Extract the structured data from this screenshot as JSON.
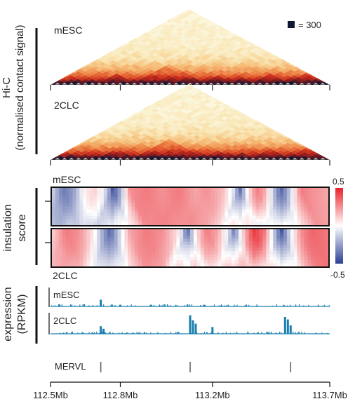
{
  "legend": {
    "swatch_color": "#141733",
    "label": "= 300"
  },
  "labels": {
    "hic_line1": "Hi-C",
    "hic_line2": "(normalised contact signal)",
    "ins_line1": "insulation",
    "ins_line2": "score",
    "expr_line1": "expression",
    "expr_line2": "(RPKM)"
  },
  "chart_data": [
    {
      "type": "heatmap",
      "title": "mESC",
      "description_of_values": "triangular Hi-C contact map, normalised contact signal",
      "colorscale": [
        "#fbf6dc",
        "#f9e4b0",
        "#f6bd78",
        "#ee8a4b",
        "#e0542a",
        "#c0261b",
        "#6e1a22",
        "#141733"
      ],
      "domains": [
        [
          0,
          0.045
        ],
        [
          0.045,
          0.115
        ],
        [
          0.115,
          0.175
        ],
        [
          0.175,
          0.29
        ],
        [
          0.29,
          0.54
        ],
        [
          0.54,
          0.64
        ],
        [
          0.64,
          0.72
        ],
        [
          0.72,
          0.84
        ],
        [
          0.84,
          1.0
        ]
      ],
      "scale_max": 300
    },
    {
      "type": "heatmap",
      "title": "2CLC",
      "description_of_values": "triangular Hi-C contact map, normalised contact signal",
      "colorscale": [
        "#fbf6dc",
        "#f9e4b0",
        "#f6bd78",
        "#ee8a4b",
        "#e0542a",
        "#c0261b",
        "#6e1a22",
        "#141733"
      ],
      "domains": [
        [
          0,
          0.045
        ],
        [
          0.045,
          0.115
        ],
        [
          0.115,
          0.175
        ],
        [
          0.175,
          0.29
        ],
        [
          0.29,
          0.54
        ],
        [
          0.54,
          0.64
        ],
        [
          0.64,
          0.72
        ],
        [
          0.72,
          0.84
        ],
        [
          0.84,
          1.0
        ]
      ],
      "scale_max": 300
    },
    {
      "type": "heatmap",
      "title": "insulation score",
      "rows": [
        "mESC",
        "2CLC"
      ],
      "colorbar": {
        "min": -0.5,
        "max": 0.5,
        "tick_labels": [
          "0.5",
          "-0.5"
        ],
        "colors": [
          "#2b3f93",
          "#ffffff",
          "#e8222a"
        ]
      },
      "mESC_profile": [
        [
          0.0,
          -0.1
        ],
        [
          0.04,
          -0.35
        ],
        [
          0.08,
          -0.25
        ],
        [
          0.12,
          0.05
        ],
        [
          0.16,
          0.1
        ],
        [
          0.2,
          -0.15
        ],
        [
          0.22,
          -0.45
        ],
        [
          0.25,
          -0.2
        ],
        [
          0.28,
          0.25
        ],
        [
          0.34,
          0.3
        ],
        [
          0.4,
          0.25
        ],
        [
          0.46,
          0.3
        ],
        [
          0.52,
          0.2
        ],
        [
          0.56,
          0.25
        ],
        [
          0.62,
          0.15
        ],
        [
          0.66,
          -0.1
        ],
        [
          0.68,
          -0.4
        ],
        [
          0.71,
          0.05
        ],
        [
          0.74,
          0.3
        ],
        [
          0.77,
          0.2
        ],
        [
          0.81,
          -0.25
        ],
        [
          0.83,
          -0.4
        ],
        [
          0.86,
          -0.15
        ],
        [
          0.9,
          0.3
        ],
        [
          0.94,
          0.25
        ],
        [
          1.0,
          0.2
        ]
      ],
      "2CLC_profile": [
        [
          0.0,
          0.1
        ],
        [
          0.05,
          0.3
        ],
        [
          0.1,
          0.25
        ],
        [
          0.15,
          0.05
        ],
        [
          0.18,
          -0.2
        ],
        [
          0.21,
          -0.4
        ],
        [
          0.24,
          -0.15
        ],
        [
          0.28,
          0.2
        ],
        [
          0.34,
          0.3
        ],
        [
          0.4,
          0.25
        ],
        [
          0.46,
          0.05
        ],
        [
          0.49,
          -0.4
        ],
        [
          0.52,
          0.05
        ],
        [
          0.56,
          0.3
        ],
        [
          0.6,
          0.2
        ],
        [
          0.64,
          -0.1
        ],
        [
          0.66,
          -0.35
        ],
        [
          0.69,
          0.1
        ],
        [
          0.73,
          0.45
        ],
        [
          0.77,
          0.3
        ],
        [
          0.8,
          -0.1
        ],
        [
          0.83,
          -0.45
        ],
        [
          0.86,
          -0.1
        ],
        [
          0.9,
          0.25
        ],
        [
          0.94,
          0.35
        ],
        [
          1.0,
          0.3
        ]
      ]
    },
    {
      "type": "area",
      "title": "expression (RPKM)",
      "color": "#1a7fae",
      "x_units": "fraction of 112.5–113.7 Mb window",
      "series": [
        {
          "name": "mESC",
          "baseline": 1,
          "peaks": [
            [
              0.18,
              8
            ],
            [
              0.25,
              2
            ],
            [
              0.36,
              2
            ],
            [
              0.55,
              2
            ]
          ]
        },
        {
          "name": "2CLC",
          "baseline": 1,
          "peaks": [
            [
              0.18,
              9
            ],
            [
              0.19,
              6
            ],
            [
              0.5,
              22
            ],
            [
              0.51,
              16
            ],
            [
              0.52,
              12
            ],
            [
              0.58,
              8
            ],
            [
              0.84,
              20
            ],
            [
              0.85,
              17
            ],
            [
              0.86,
              10
            ]
          ]
        }
      ]
    },
    {
      "type": "scatter",
      "title": "MERVL",
      "positions": [
        0.18,
        0.5,
        0.86
      ]
    }
  ],
  "axis": {
    "tick_labels": [
      "112.5Mb",
      "112.8Mb",
      "113.2Mb",
      "113.7Mb"
    ],
    "tick_fracs": [
      0.0,
      0.25,
      0.58,
      1.0
    ]
  }
}
